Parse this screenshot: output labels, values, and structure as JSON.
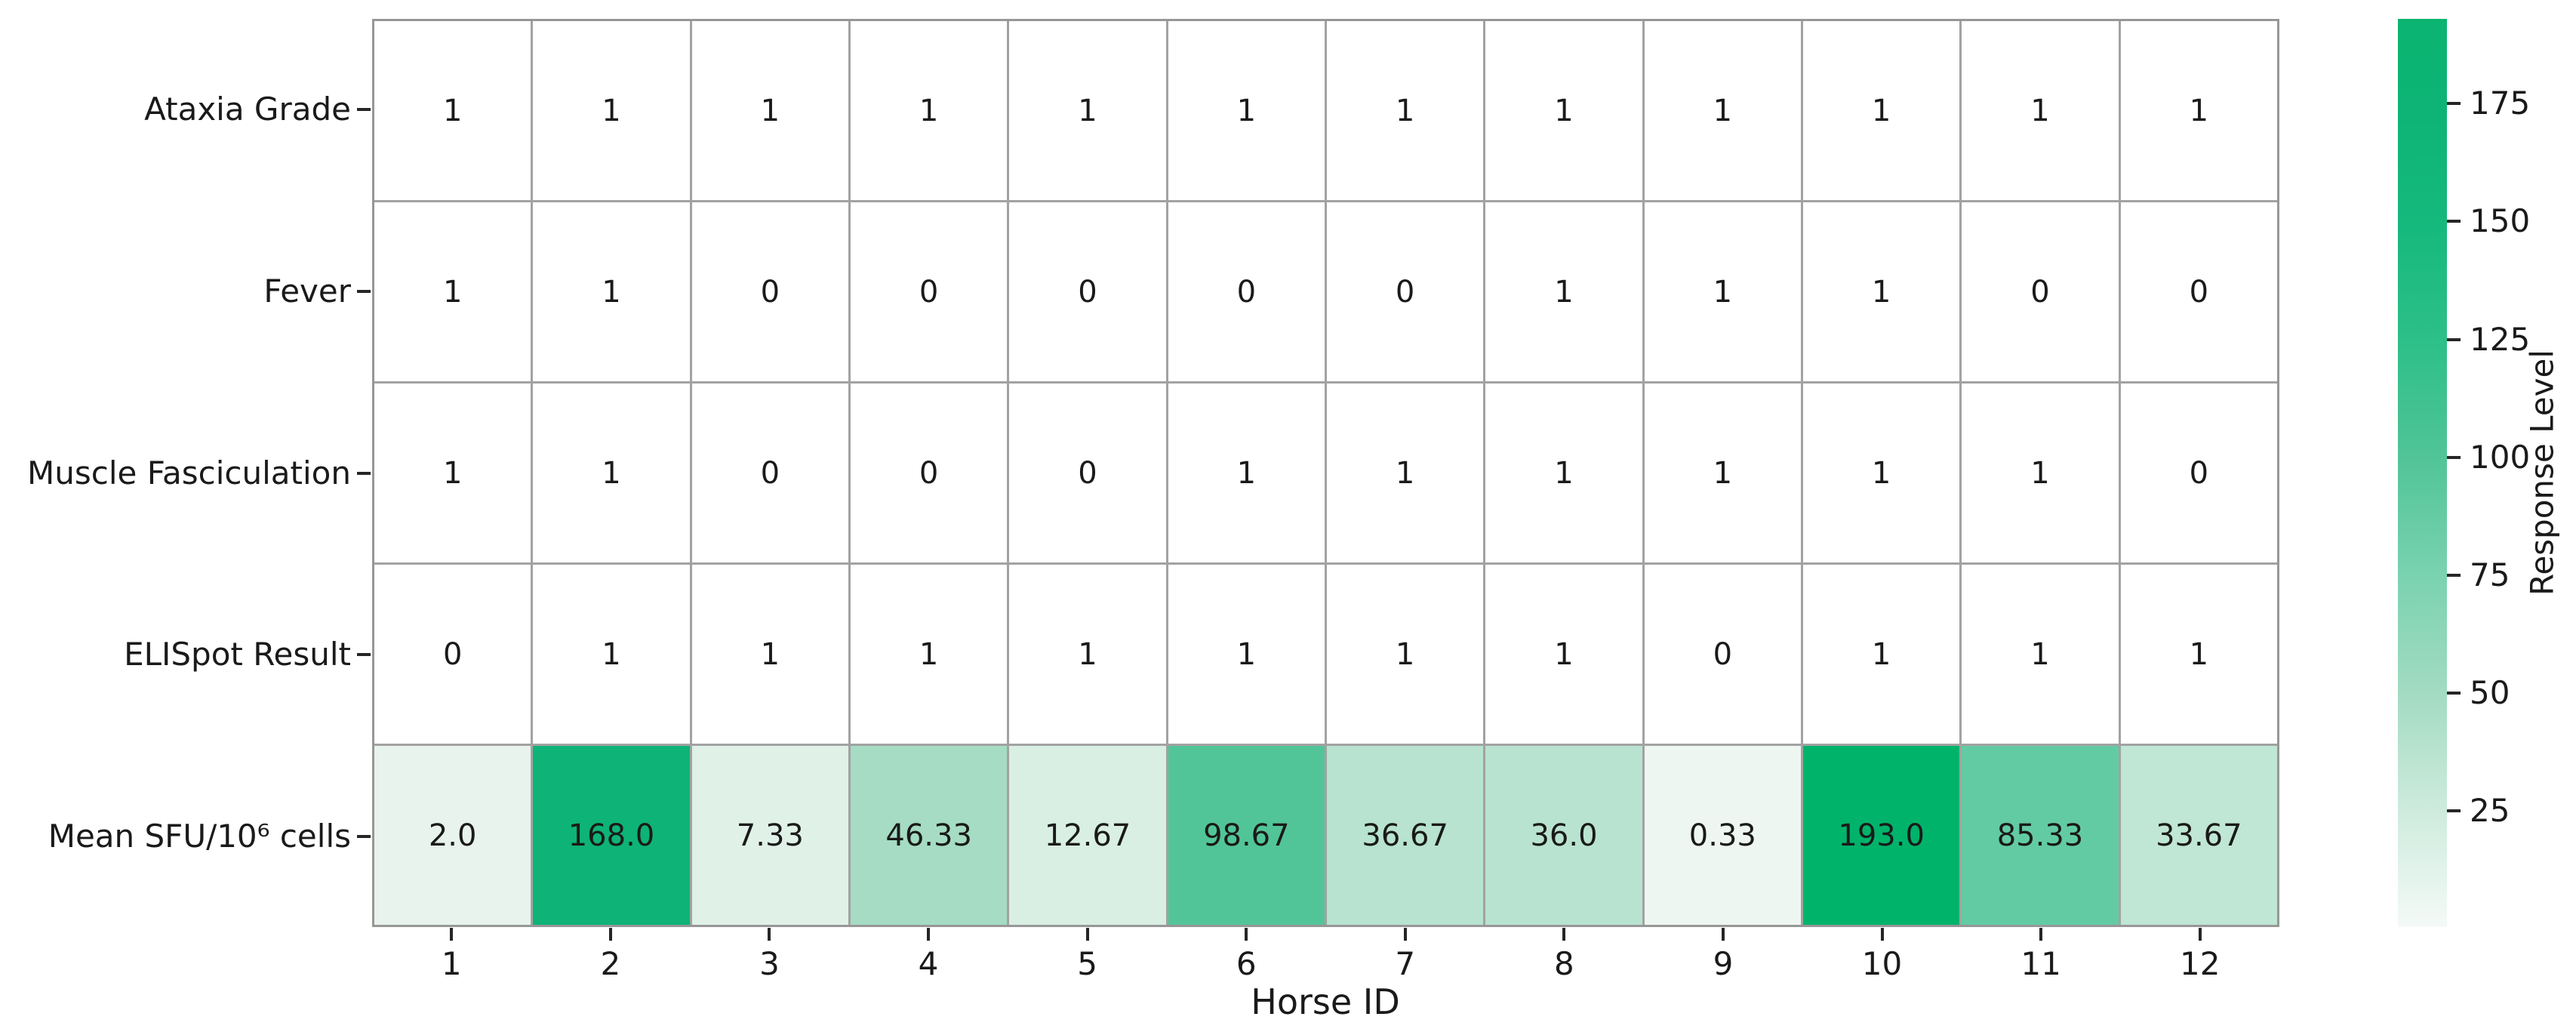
{
  "figure": {
    "background": "#ffffff",
    "grid_line_color": "#a2a2a2",
    "tick_color": "#262626",
    "text_color": "#1a1a1a"
  },
  "chart_data": {
    "type": "heatmap",
    "xlabel": "Horse ID",
    "colorbar_label": "Response Level",
    "colorbar_range": [
      0.33,
      193.0
    ],
    "colorbar_ticks": [
      175,
      150,
      125,
      100,
      75,
      50,
      25
    ],
    "x_categories": [
      "1",
      "2",
      "3",
      "4",
      "5",
      "6",
      "7",
      "8",
      "9",
      "10",
      "11",
      "12"
    ],
    "y_categories": [
      "Ataxia Grade",
      "Fever",
      "Muscle Fasciculation",
      "ELISpot Result",
      "Mean SFU/10⁶ cells"
    ],
    "rows": [
      {
        "label": "Ataxia Grade",
        "values": [
          "1",
          "1",
          "1",
          "1",
          "1",
          "1",
          "1",
          "1",
          "1",
          "1",
          "1",
          "1"
        ],
        "colors": [
          "#ffffff",
          "#ffffff",
          "#ffffff",
          "#ffffff",
          "#ffffff",
          "#ffffff",
          "#ffffff",
          "#ffffff",
          "#ffffff",
          "#ffffff",
          "#ffffff",
          "#ffffff"
        ]
      },
      {
        "label": "Fever",
        "values": [
          "1",
          "1",
          "0",
          "0",
          "0",
          "0",
          "0",
          "1",
          "1",
          "1",
          "0",
          "0"
        ],
        "colors": [
          "#ffffff",
          "#ffffff",
          "#ffffff",
          "#ffffff",
          "#ffffff",
          "#ffffff",
          "#ffffff",
          "#ffffff",
          "#ffffff",
          "#ffffff",
          "#ffffff",
          "#ffffff"
        ]
      },
      {
        "label": "Muscle Fasciculation",
        "values": [
          "1",
          "1",
          "0",
          "0",
          "0",
          "1",
          "1",
          "1",
          "1",
          "1",
          "1",
          "0"
        ],
        "colors": [
          "#ffffff",
          "#ffffff",
          "#ffffff",
          "#ffffff",
          "#ffffff",
          "#ffffff",
          "#ffffff",
          "#ffffff",
          "#ffffff",
          "#ffffff",
          "#ffffff",
          "#ffffff"
        ]
      },
      {
        "label": "ELISpot Result",
        "values": [
          "0",
          "1",
          "1",
          "1",
          "1",
          "1",
          "1",
          "1",
          "0",
          "1",
          "1",
          "1"
        ],
        "colors": [
          "#ffffff",
          "#ffffff",
          "#ffffff",
          "#ffffff",
          "#ffffff",
          "#ffffff",
          "#ffffff",
          "#ffffff",
          "#ffffff",
          "#ffffff",
          "#ffffff",
          "#ffffff"
        ]
      },
      {
        "label": "Mean SFU/10⁶ cells",
        "values": [
          "2.0",
          "168.0",
          "7.33",
          "46.33",
          "12.67",
          "98.67",
          "36.67",
          "36.0",
          "0.33",
          "193.0",
          "85.33",
          "33.67"
        ],
        "numeric": [
          2.0,
          168.0,
          7.33,
          46.33,
          12.67,
          98.67,
          36.67,
          36.0,
          0.33,
          193.0,
          85.33,
          33.67
        ],
        "colors": [
          "#e7f3ec",
          "#0eb377",
          "#e0f1e8",
          "#a5dcc3",
          "#d9efe3",
          "#52c598",
          "#b7e3d0",
          "#b9e3d1",
          "#edf6f1",
          "#00b36b",
          "#63cba4",
          "#c0e6d5"
        ]
      }
    ],
    "colormap_stops": [
      [
        0.0,
        "#f4faf7"
      ],
      [
        0.13,
        "#cdebdd"
      ],
      [
        0.26,
        "#a2dbc1"
      ],
      [
        0.39,
        "#79d2b0"
      ],
      [
        0.52,
        "#50c497"
      ],
      [
        0.64,
        "#2ec088"
      ],
      [
        0.77,
        "#16b97d"
      ],
      [
        0.9,
        "#0db475"
      ],
      [
        1.0,
        "#0bb471"
      ]
    ]
  }
}
